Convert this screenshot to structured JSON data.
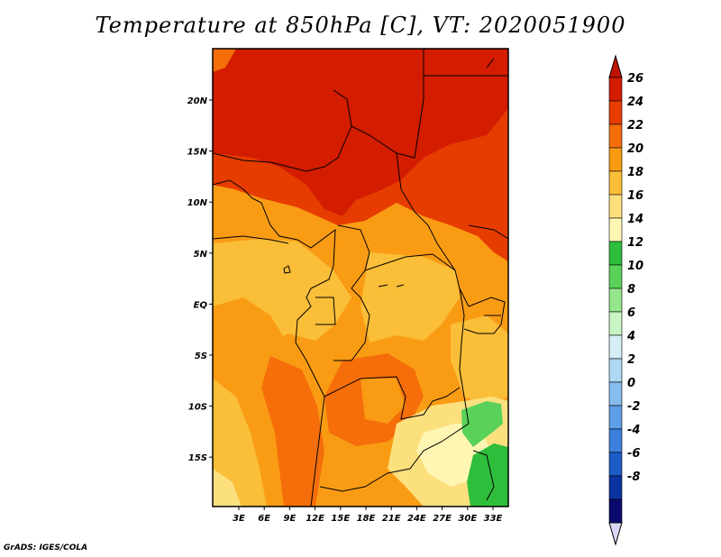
{
  "title": "Temperature at 850hPa [C], VT: 2020051900",
  "credit": "GrADS: IGES/COLA",
  "map": {
    "lon_ticks": [
      "3E",
      "6E",
      "9E",
      "12E",
      "15E",
      "18E",
      "21E",
      "24E",
      "27E",
      "30E",
      "33E"
    ],
    "lat_ticks": [
      "20N",
      "15N",
      "10N",
      "5N",
      "EQ",
      "5S",
      "10S",
      "15S"
    ]
  },
  "colorbar": {
    "labels": [
      "26",
      "24",
      "22",
      "20",
      "18",
      "16",
      "14",
      "12",
      "10",
      "8",
      "6",
      "4",
      "2",
      "0",
      "-2",
      "-4",
      "-6",
      "-8"
    ],
    "colors": [
      "#d31c00",
      "#e63c00",
      "#f56e0a",
      "#f99c14",
      "#fbbe38",
      "#fde07e",
      "#fff6b4",
      "#2ebe3c",
      "#5ad25a",
      "#96e68c",
      "#c8f5c3",
      "#d6edf6",
      "#b0d8f4",
      "#86bcee",
      "#5ea0e6",
      "#3a80dc",
      "#1c5cc8",
      "#0a32a0",
      "#0a0a6e"
    ],
    "top_arrow_color": "#c01400",
    "bottom_arrow_color": "#d7d7f5"
  }
}
